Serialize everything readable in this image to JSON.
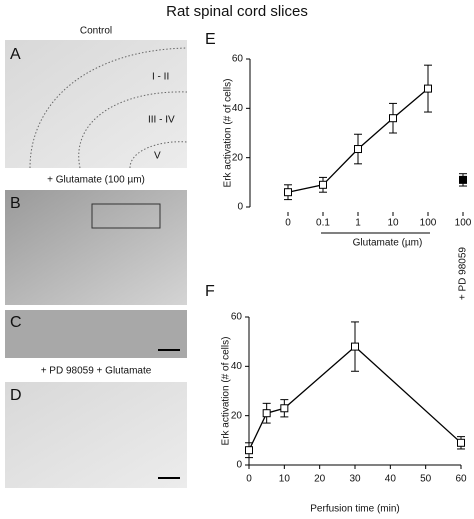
{
  "title": "Rat spinal cord slices",
  "panels": [
    {
      "letter": "A",
      "caption": "Control",
      "region_labels": [
        "I - II",
        "III - IV",
        "V"
      ]
    },
    {
      "letter": "B",
      "caption": "+ Glutamate (100 µm)"
    },
    {
      "letter": "C"
    },
    {
      "letter": "D",
      "caption": "+ PD 98059 + Glutamate"
    }
  ],
  "chart_data": [
    {
      "type": "line",
      "panel": "E",
      "categories": [
        "0",
        "0.1",
        "1",
        "10",
        "100",
        "100"
      ],
      "series": [
        {
          "color": "#000000",
          "marker_fill": "#ffffff",
          "values": [
            6,
            9,
            23.5,
            36,
            48,
            null
          ],
          "errors": [
            3,
            3,
            6,
            6,
            9.5,
            null
          ]
        },
        {
          "color": "#000000",
          "marker_fill": "#000000",
          "values": [
            null,
            null,
            null,
            null,
            null,
            11
          ],
          "errors": [
            null,
            null,
            null,
            null,
            null,
            2.5
          ]
        }
      ],
      "ylabel": "Erk activation (# of cells)",
      "ylim": [
        0,
        60
      ],
      "yticks": [
        0,
        20,
        40,
        60
      ],
      "annotations": [
        "Glutamate (µm)",
        "+ PD 98059"
      ]
    },
    {
      "type": "line",
      "panel": "F",
      "x": [
        0,
        5,
        10,
        30,
        60
      ],
      "series": [
        {
          "color": "#000000",
          "marker_fill": "#ffffff",
          "values": [
            6,
            21,
            23,
            48,
            9
          ],
          "errors": [
            3,
            4,
            3.5,
            10,
            2.5
          ]
        }
      ],
      "xlabel": "Perfusion time (min)",
      "xlim": [
        0,
        60
      ],
      "xticks": [
        0,
        10,
        20,
        30,
        40,
        50,
        60
      ],
      "ylabel": "Erk activation (# of cells)",
      "ylim": [
        0,
        60
      ],
      "yticks": [
        0,
        20,
        40,
        60
      ]
    }
  ]
}
